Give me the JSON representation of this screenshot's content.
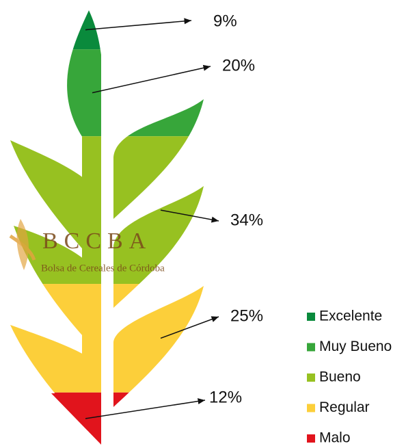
{
  "chart_data": {
    "type": "pictogram",
    "categories": [
      "Excelente",
      "Muy Bueno",
      "Bueno",
      "Regular",
      "Malo"
    ],
    "values": [
      9,
      20,
      34,
      25,
      12
    ],
    "value_labels": [
      "9%",
      "20%",
      "34%",
      "25%",
      "12%"
    ],
    "colors": [
      "#0a8a3c",
      "#37a63a",
      "#97c121",
      "#fccf3a",
      "#e1141c"
    ],
    "watermark": {
      "logo": "BCCBA",
      "text": "Bolsa de Cereales de Córdoba"
    }
  }
}
